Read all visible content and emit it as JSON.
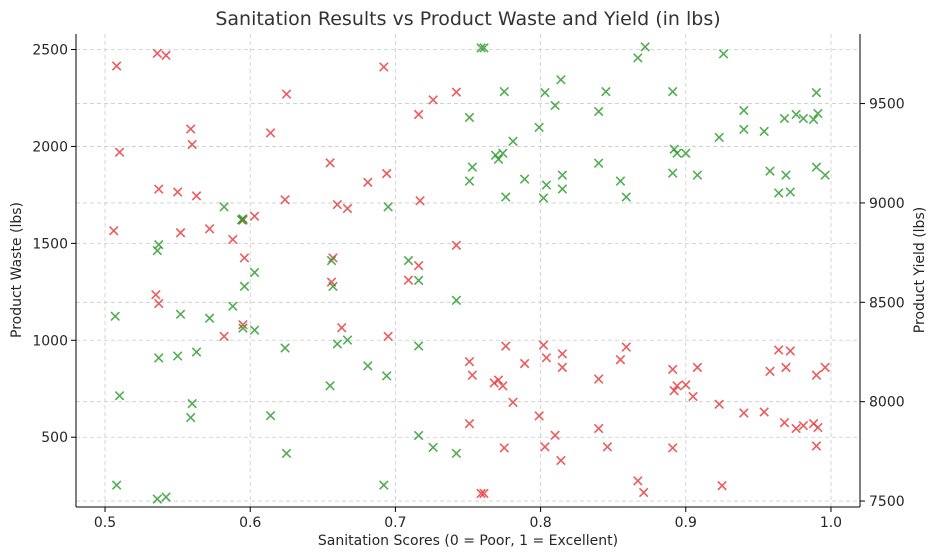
{
  "chart_data": {
    "type": "scatter",
    "title": "Sanitation Results vs Product Waste and Yield (in lbs)",
    "xlabel": "Sanitation Scores (0 = Poor, 1 = Excellent)",
    "ylabel_left": "Product Waste (lbs)",
    "ylabel_right": "Product Yield (lbs)",
    "xlim": [
      0.48,
      1.02
    ],
    "ylim_left": [
      140,
      2580
    ],
    "ylim_right": [
      7470,
      9850
    ],
    "x_ticks": [
      0.5,
      0.6,
      0.7,
      0.8,
      0.9,
      1.0
    ],
    "x_tick_labels": [
      "0.5",
      "0.6",
      "0.7",
      "0.8",
      "0.9",
      "1.0"
    ],
    "y_left_ticks": [
      500,
      1000,
      1500,
      2000,
      2500
    ],
    "y_left_tick_labels": [
      "500",
      "1000",
      "1500",
      "2000",
      "2500"
    ],
    "y_right_ticks": [
      7500,
      8000,
      8500,
      9000,
      9500
    ],
    "y_right_tick_labels": [
      "7500",
      "8000",
      "8500",
      "9000",
      "9500"
    ],
    "grid": true,
    "marker": "x",
    "colors": {
      "waste": "#e8383a",
      "yield": "#2e9a2e",
      "left_axis": "#e8383a",
      "right_axis": "#2e9a2e"
    },
    "series": [
      {
        "axis": "left",
        "points": [
          [
            0.508,
            2415
          ],
          [
            0.536,
            2480
          ],
          [
            0.542,
            2470
          ],
          [
            0.692,
            2410
          ],
          [
            0.625,
            2270
          ],
          [
            0.742,
            2280
          ],
          [
            0.726,
            2240
          ],
          [
            0.716,
            2165
          ],
          [
            0.559,
            2090
          ],
          [
            0.614,
            2070
          ],
          [
            0.51,
            1970
          ],
          [
            0.56,
            2010
          ],
          [
            0.655,
            1915
          ],
          [
            0.694,
            1860
          ],
          [
            0.681,
            1815
          ],
          [
            0.537,
            1780
          ],
          [
            0.55,
            1765
          ],
          [
            0.563,
            1745
          ],
          [
            0.624,
            1725
          ],
          [
            0.717,
            1720
          ],
          [
            0.66,
            1700
          ],
          [
            0.667,
            1680
          ],
          [
            0.603,
            1640
          ],
          [
            0.595,
            1620
          ],
          [
            0.572,
            1575
          ],
          [
            0.506,
            1565
          ],
          [
            0.552,
            1555
          ],
          [
            0.588,
            1520
          ],
          [
            0.742,
            1490
          ],
          [
            0.596,
            1425
          ],
          [
            0.657,
            1425
          ],
          [
            0.716,
            1385
          ],
          [
            0.709,
            1310
          ],
          [
            0.656,
            1300
          ],
          [
            0.535,
            1235
          ],
          [
            0.537,
            1190
          ],
          [
            0.595,
            1080
          ],
          [
            0.663,
            1065
          ],
          [
            0.582,
            1020
          ],
          [
            0.695,
            1020
          ],
          [
            0.776,
            970
          ],
          [
            0.802,
            975
          ],
          [
            0.859,
            965
          ],
          [
            0.964,
            950
          ],
          [
            0.972,
            945
          ],
          [
            0.815,
            930
          ],
          [
            0.804,
            910
          ],
          [
            0.855,
            900
          ],
          [
            0.751,
            890
          ],
          [
            0.789,
            880
          ],
          [
            0.996,
            860
          ],
          [
            0.908,
            860
          ],
          [
            0.969,
            860
          ],
          [
            0.815,
            860
          ],
          [
            0.891,
            850
          ],
          [
            0.958,
            840
          ],
          [
            0.753,
            820
          ],
          [
            0.99,
            820
          ],
          [
            0.84,
            800
          ],
          [
            0.771,
            795
          ],
          [
            0.768,
            780
          ],
          [
            0.9,
            770
          ],
          [
            0.894,
            765
          ],
          [
            0.774,
            765
          ],
          [
            0.892,
            740
          ],
          [
            0.905,
            710
          ],
          [
            0.781,
            680
          ],
          [
            0.923,
            670
          ],
          [
            0.954,
            630
          ],
          [
            0.94,
            625
          ],
          [
            0.799,
            610
          ],
          [
            0.968,
            575
          ],
          [
            0.751,
            570
          ],
          [
            0.988,
            570
          ],
          [
            0.981,
            560
          ],
          [
            0.976,
            545
          ],
          [
            0.991,
            550
          ],
          [
            0.84,
            545
          ],
          [
            0.81,
            510
          ],
          [
            0.775,
            445
          ],
          [
            0.803,
            450
          ],
          [
            0.846,
            450
          ],
          [
            0.891,
            445
          ],
          [
            0.99,
            455
          ],
          [
            0.814,
            380
          ],
          [
            0.867,
            275
          ],
          [
            0.925,
            250
          ],
          [
            0.871,
            215
          ],
          [
            0.761,
            210
          ],
          [
            0.759,
            210
          ]
        ]
      },
      {
        "axis": "right",
        "points": [
          [
            0.759,
            9780
          ],
          [
            0.761,
            9780
          ],
          [
            0.872,
            9785
          ],
          [
            0.867,
            9730
          ],
          [
            0.926,
            9750
          ],
          [
            0.814,
            9620
          ],
          [
            0.845,
            9560
          ],
          [
            0.891,
            9560
          ],
          [
            0.775,
            9560
          ],
          [
            0.803,
            9555
          ],
          [
            0.99,
            9555
          ],
          [
            0.81,
            9490
          ],
          [
            0.94,
            9465
          ],
          [
            0.84,
            9460
          ],
          [
            0.751,
            9430
          ],
          [
            0.968,
            9425
          ],
          [
            0.976,
            9445
          ],
          [
            0.991,
            9450
          ],
          [
            0.988,
            9420
          ],
          [
            0.981,
            9425
          ],
          [
            0.94,
            9370
          ],
          [
            0.954,
            9360
          ],
          [
            0.799,
            9380
          ],
          [
            0.923,
            9330
          ],
          [
            0.781,
            9310
          ],
          [
            0.892,
            9270
          ],
          [
            0.894,
            9250
          ],
          [
            0.9,
            9250
          ],
          [
            0.769,
            9240
          ],
          [
            0.774,
            9250
          ],
          [
            0.771,
            9220
          ],
          [
            0.84,
            9200
          ],
          [
            0.753,
            9180
          ],
          [
            0.99,
            9180
          ],
          [
            0.958,
            9160
          ],
          [
            0.891,
            9150
          ],
          [
            0.815,
            9140
          ],
          [
            0.908,
            9140
          ],
          [
            0.969,
            9140
          ],
          [
            0.996,
            9140
          ],
          [
            0.789,
            9120
          ],
          [
            0.751,
            9110
          ],
          [
            0.855,
            9110
          ],
          [
            0.804,
            9090
          ],
          [
            0.815,
            9070
          ],
          [
            0.964,
            9050
          ],
          [
            0.972,
            9055
          ],
          [
            0.859,
            9030
          ],
          [
            0.776,
            9030
          ],
          [
            0.802,
            9025
          ],
          [
            0.695,
            8980
          ],
          [
            0.582,
            8980
          ],
          [
            0.594,
            8915
          ],
          [
            0.595,
            8920
          ],
          [
            0.537,
            8790
          ],
          [
            0.536,
            8760
          ],
          [
            0.709,
            8710
          ],
          [
            0.656,
            8710
          ],
          [
            0.603,
            8650
          ],
          [
            0.716,
            8610
          ],
          [
            0.596,
            8580
          ],
          [
            0.657,
            8580
          ],
          [
            0.742,
            8510
          ],
          [
            0.588,
            8480
          ],
          [
            0.507,
            8430
          ],
          [
            0.552,
            8440
          ],
          [
            0.572,
            8420
          ],
          [
            0.595,
            8370
          ],
          [
            0.603,
            8360
          ],
          [
            0.667,
            8310
          ],
          [
            0.66,
            8290
          ],
          [
            0.716,
            8280
          ],
          [
            0.624,
            8270
          ],
          [
            0.563,
            8250
          ],
          [
            0.55,
            8230
          ],
          [
            0.537,
            8220
          ],
          [
            0.681,
            8180
          ],
          [
            0.694,
            8130
          ],
          [
            0.655,
            8080
          ],
          [
            0.51,
            8030
          ],
          [
            0.56,
            7990
          ],
          [
            0.614,
            7930
          ],
          [
            0.559,
            7920
          ],
          [
            0.716,
            7830
          ],
          [
            0.726,
            7770
          ],
          [
            0.625,
            7740
          ],
          [
            0.742,
            7740
          ],
          [
            0.508,
            7580
          ],
          [
            0.692,
            7580
          ],
          [
            0.536,
            7510
          ],
          [
            0.542,
            7520
          ]
        ]
      }
    ]
  }
}
